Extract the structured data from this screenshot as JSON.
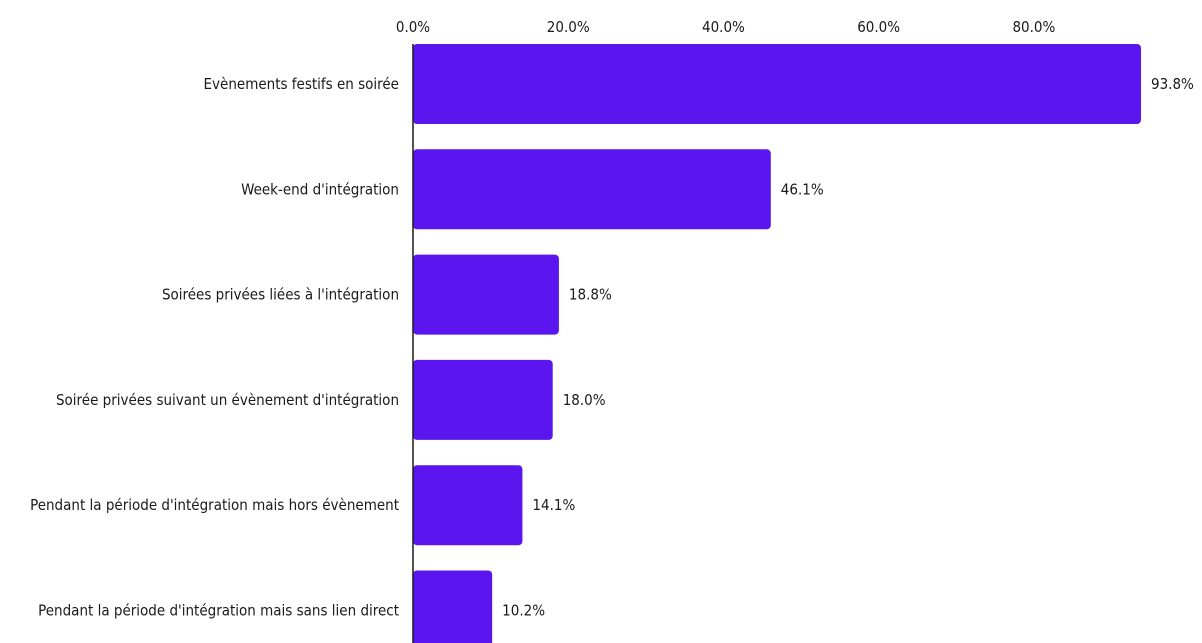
{
  "chart_data": {
    "type": "bar",
    "orientation": "horizontal",
    "categories": [
      "Evènements festifs en soirée",
      "Week-end d'intégration",
      "Soirées privées liées à l'intégration",
      "Soirée privées suivant un évènement d'intégration",
      "Pendant la période d'intégration mais hors évènement",
      "Pendant la période d'intégration mais sans lien direct"
    ],
    "values": [
      93.8,
      46.1,
      18.8,
      18.0,
      14.1,
      10.2
    ],
    "value_labels": [
      "93.8%",
      "46.1%",
      "18.8%",
      "18.0%",
      "14.1%",
      "10.2%"
    ],
    "x_ticks": [
      0,
      20,
      40,
      60,
      80
    ],
    "x_tick_labels": [
      "0.0%",
      "20.0%",
      "40.0%",
      "60.0%",
      "80.0%"
    ],
    "xlim": [
      0,
      95
    ],
    "axis_position": "top",
    "grid": false,
    "legend": "none",
    "title": "",
    "xlabel": "",
    "ylabel": "",
    "colors": {
      "bar": "#5b16ef",
      "text": "#1a1a1a",
      "axis": "#1a1a1a"
    }
  }
}
